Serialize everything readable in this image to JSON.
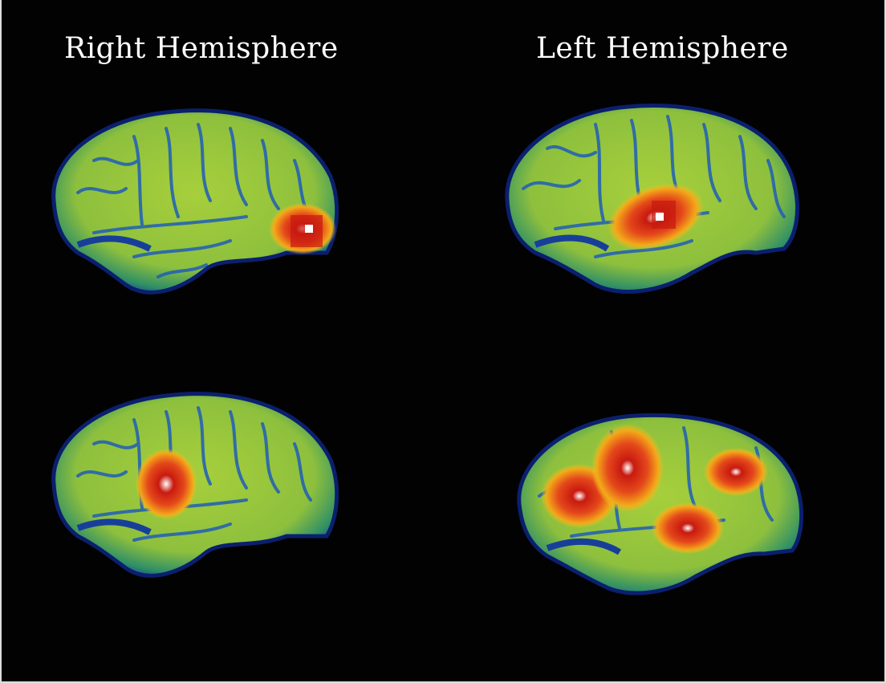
{
  "headings": {
    "right": "Right Hemisphere",
    "left": "Left Hemisphere"
  },
  "colors": {
    "background": "#000000",
    "cortex": "#9cc93a",
    "cortex_dark": "#3e9a3a",
    "sulci": "#1d58b0",
    "edge": "#0b1f6e",
    "activation_outer": "#f5b316",
    "activation_mid": "#e8501a",
    "activation_core": "#b5130f",
    "activation_peak": "#ffffff"
  },
  "scans": [
    {
      "name": "scan-right-top",
      "activation_regions": 1
    },
    {
      "name": "scan-left-top",
      "activation_regions": 1
    },
    {
      "name": "scan-right-bottom",
      "activation_regions": 1
    },
    {
      "name": "scan-left-bottom",
      "activation_regions": 4
    }
  ]
}
